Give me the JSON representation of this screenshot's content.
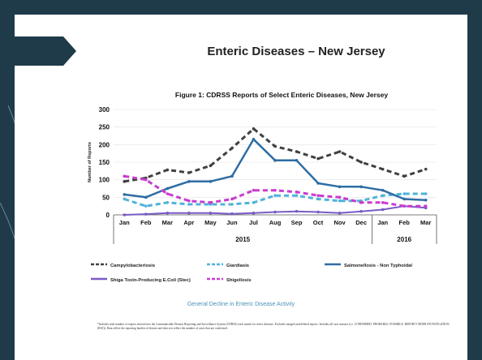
{
  "slide": {
    "title": "Enteric Diseases – New Jersey",
    "subtitle": "General Decline in Enteric Disease Activity",
    "footnote": "*Includes total number of reports entered into the Communicable Disease Reporting and Surveillance System (CDRSS) each month for select diseases. Excludes merged and deleted reports. Includes all case statuses (i.e. CONFIRMED, PROBABLE, POSSIBLE, REPORT UNDER INVESTIGATION (RUI)). Data reflect the reporting burden of disease and does not reflect the number of cases that are confirmed.",
    "colors": {
      "background": "#1f3b4a",
      "panel": "#ffffff",
      "accent": "#4a90b8"
    }
  },
  "chart_data": {
    "type": "line",
    "title": "Figure 1: CDRSS Reports of Select Enteric Diseases, New Jersey",
    "ylabel": "Number of Reports",
    "ylim": [
      0,
      300
    ],
    "yticks": [
      0,
      50,
      100,
      150,
      200,
      250,
      300
    ],
    "categories": [
      "Jan",
      "Feb",
      "Mar",
      "Apr",
      "May",
      "Jun",
      "Jul",
      "Aug",
      "Sep",
      "Oct",
      "Nov",
      "Dec",
      "Jan",
      "Feb",
      "Mar"
    ],
    "year_groups": [
      {
        "label": "2015",
        "start": 0,
        "end": 11
      },
      {
        "label": "2016",
        "start": 12,
        "end": 14
      }
    ],
    "legend_position": "bottom",
    "series": [
      {
        "name": "Campylobacteriosis",
        "color": "#404040",
        "dash": "6,4",
        "width": 3,
        "values": [
          95,
          105,
          128,
          120,
          140,
          190,
          245,
          195,
          180,
          160,
          180,
          150,
          130,
          110,
          130
        ]
      },
      {
        "name": "Giardiasis",
        "color": "#4fb3d9",
        "dash": "6,4",
        "width": 3,
        "values": [
          45,
          25,
          35,
          30,
          30,
          30,
          35,
          55,
          55,
          45,
          40,
          40,
          55,
          60,
          60
        ]
      },
      {
        "name": "Salmonellosis - Non Typhoidal",
        "color": "#2e6da4",
        "dash": "",
        "width": 2.5,
        "values": [
          58,
          50,
          75,
          95,
          95,
          110,
          215,
          155,
          155,
          90,
          80,
          80,
          70,
          45,
          42
        ]
      },
      {
        "name": "Shiga Toxin-Producing E.Coli (Stec)",
        "color": "#7a5bc4",
        "dash": "",
        "width": 2,
        "values": [
          0,
          2,
          5,
          5,
          5,
          3,
          5,
          8,
          10,
          8,
          5,
          10,
          15,
          25,
          20
        ]
      },
      {
        "name": "Shigellosis",
        "color": "#c83ccf",
        "dash": "6,4",
        "width": 3,
        "values": [
          110,
          100,
          60,
          40,
          35,
          45,
          70,
          70,
          65,
          55,
          50,
          35,
          35,
          25,
          25
        ]
      }
    ]
  }
}
